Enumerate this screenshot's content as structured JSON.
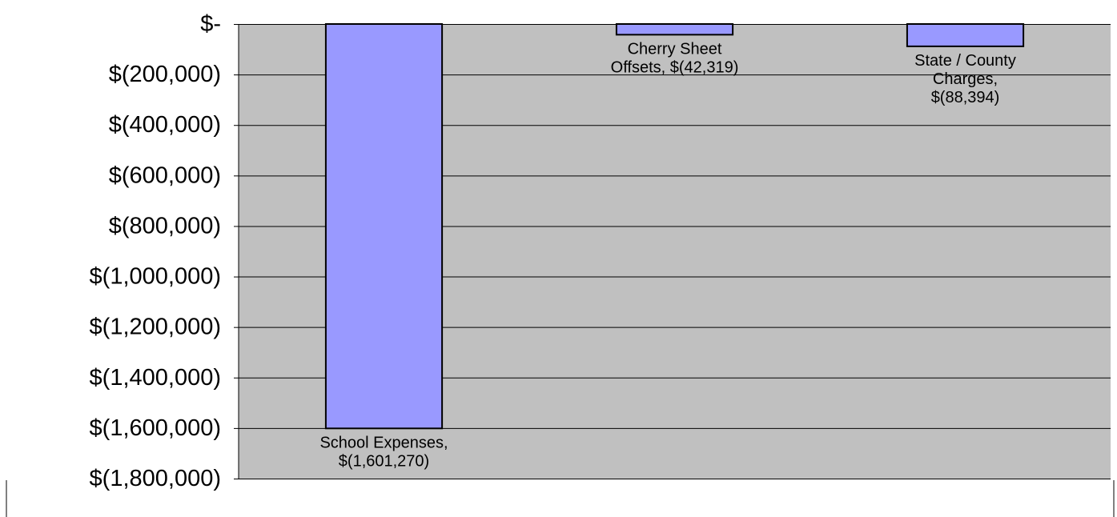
{
  "chart_data": {
    "type": "bar",
    "categories": [
      "School Expenses",
      "Cherry Sheet Offsets",
      "State / County Charges"
    ],
    "values": [
      -1601270,
      -42319,
      -88394
    ],
    "data_labels": [
      [
        "School Expenses,",
        "$(1,601,270)"
      ],
      [
        "Cherry Sheet",
        "Offsets,  $(42,319)"
      ],
      [
        "State / County",
        "Charges,",
        "$(88,394)"
      ]
    ],
    "ylim": [
      -1800000,
      0
    ],
    "y_ticks": [
      0,
      -200000,
      -400000,
      -600000,
      -800000,
      -1000000,
      -1200000,
      -1400000,
      -1600000,
      -1800000
    ],
    "y_tick_labels": [
      "$-",
      "$(200,000)",
      "$(400,000)",
      "$(600,000)",
      "$(800,000)",
      "$(1,000,000)",
      "$(1,200,000)",
      "$(1,400,000)",
      "$(1,600,000)",
      "$(1,800,000)"
    ],
    "grid": true,
    "legend": false,
    "colors": {
      "bar_fill": "#9999ff",
      "bar_stroke": "#000000",
      "plot_background": "#c0c0c0",
      "gridline": "#000000"
    }
  }
}
